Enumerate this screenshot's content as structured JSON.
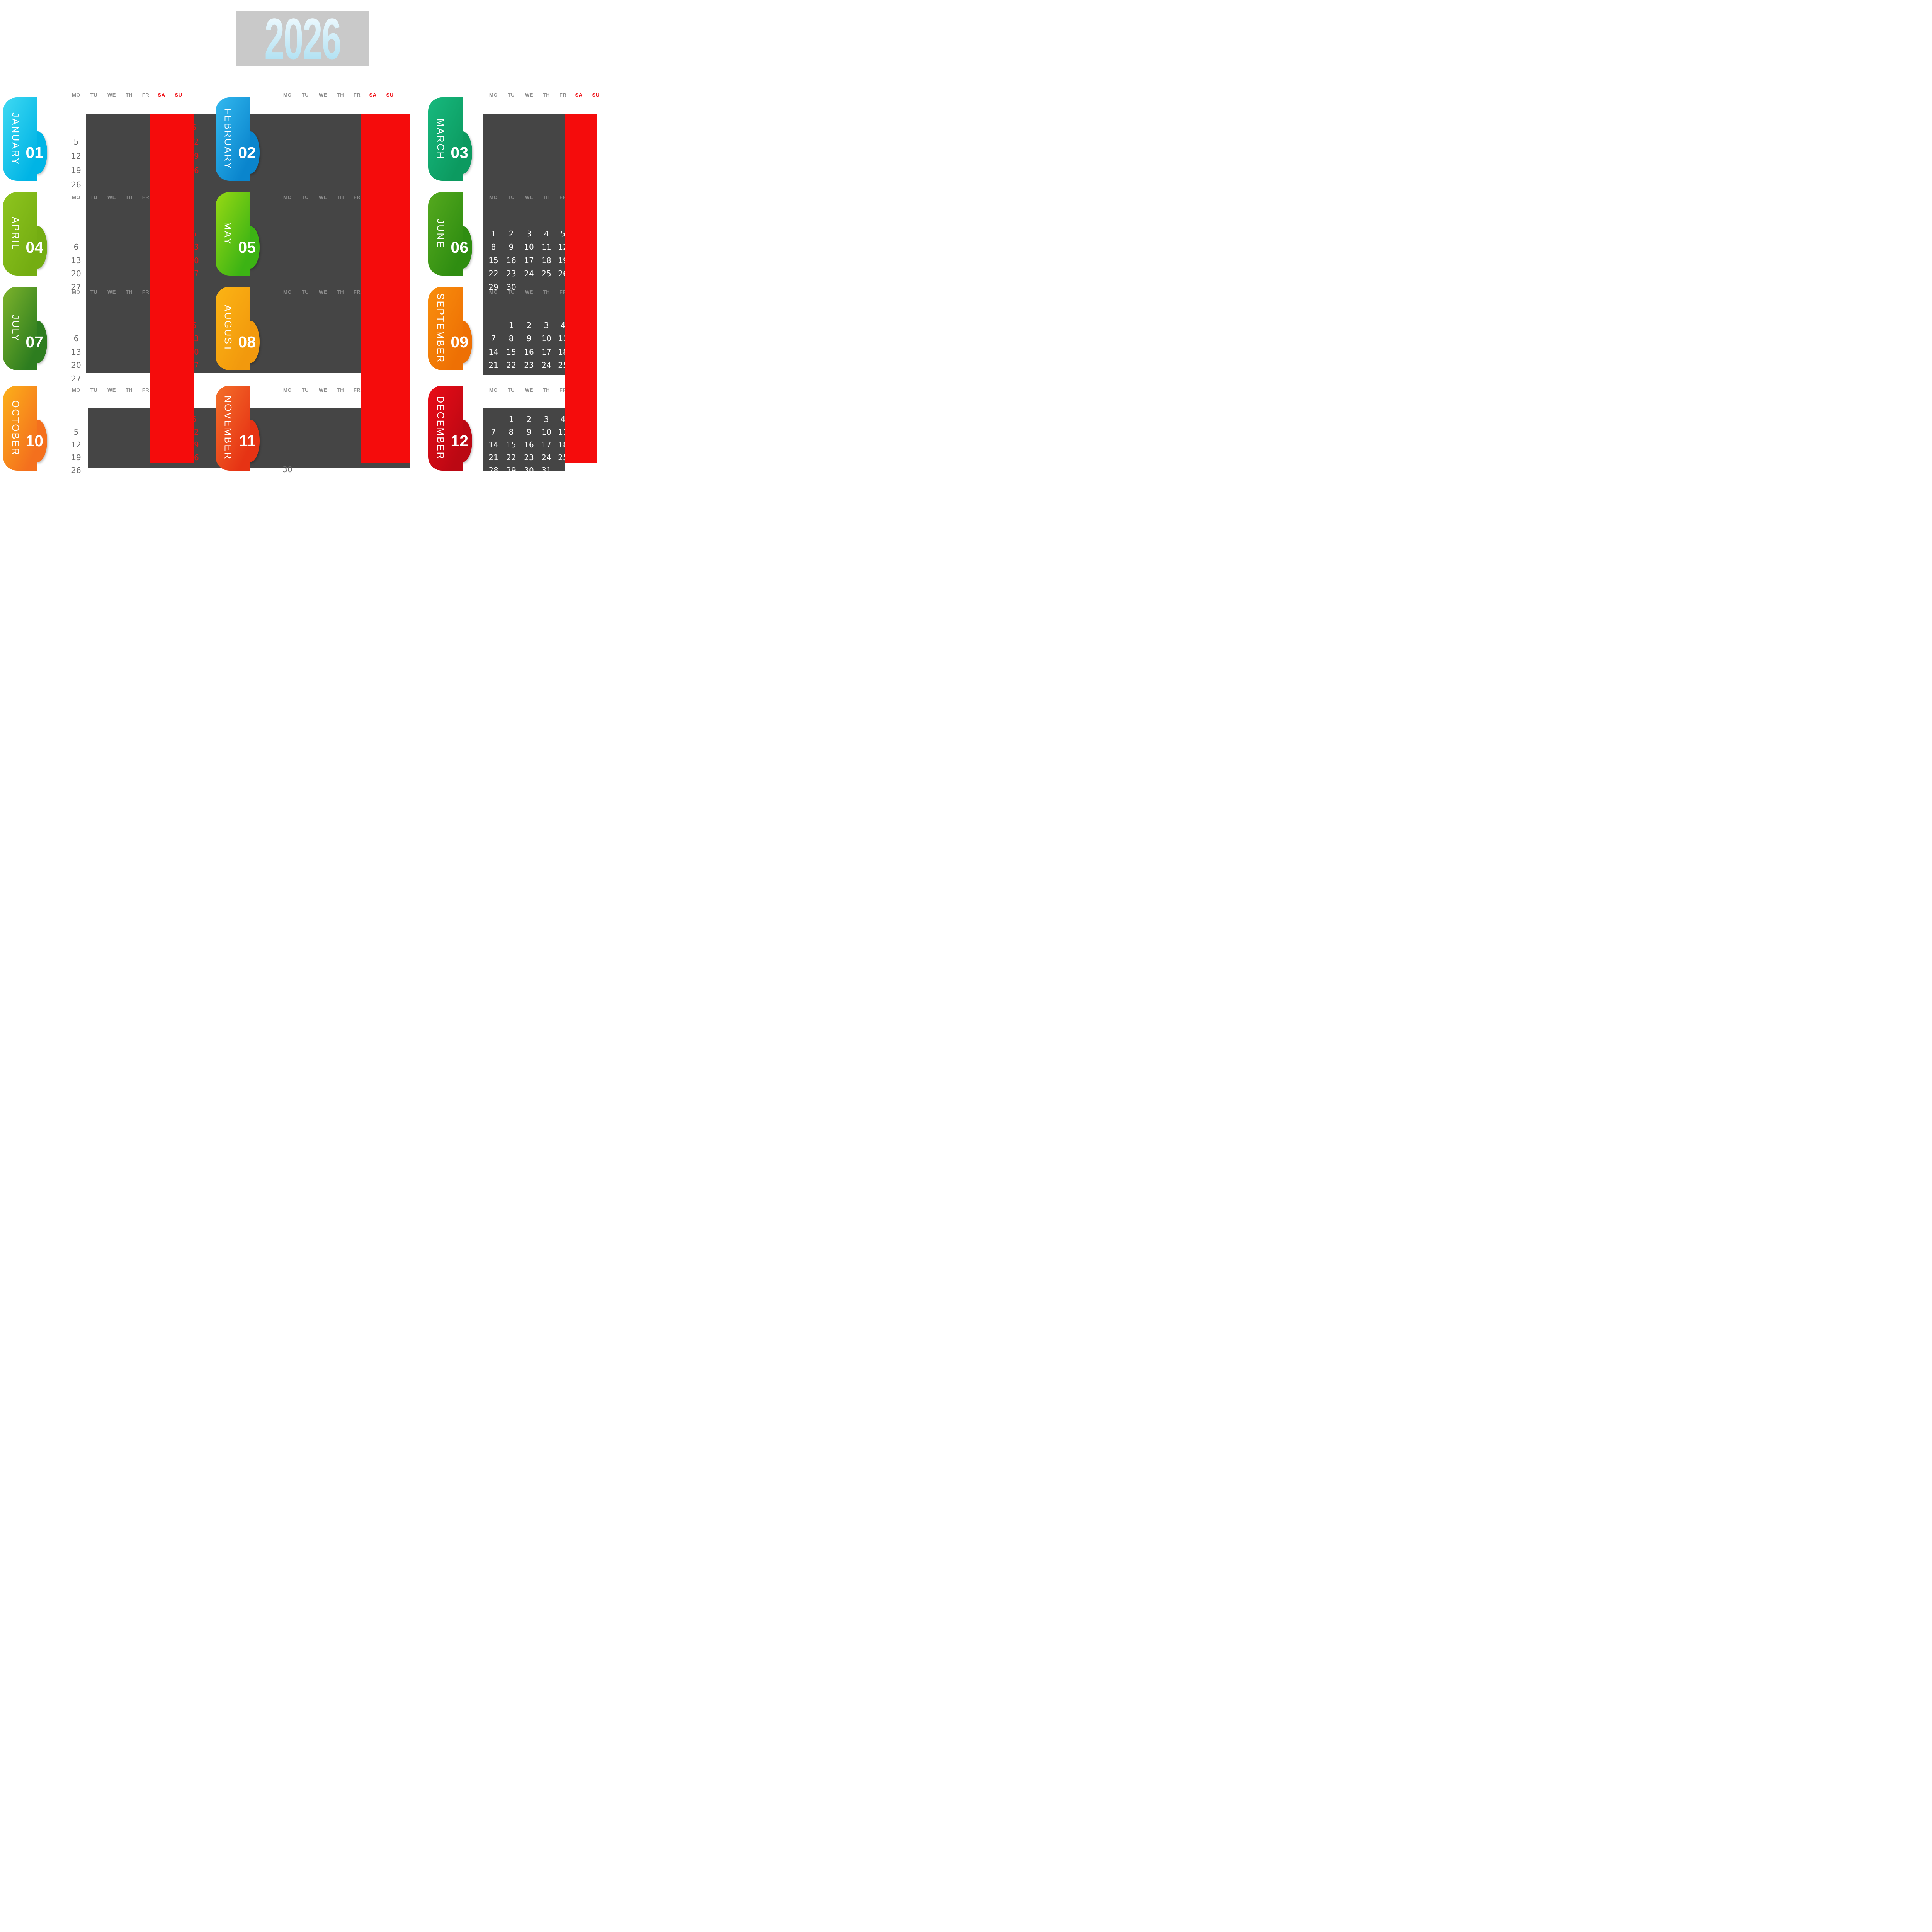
{
  "title": {
    "year": "2026"
  },
  "weekday_labels": [
    "MO",
    "TU",
    "WE",
    "TH",
    "FR",
    "SA",
    "SU"
  ],
  "colors": {
    "dark_panel": "#454545",
    "weekend_bar_red": "#f50c0c",
    "weekend_header_red": "#ef1016",
    "red_date": "#ee1111",
    "header_gray": "#8c8c8c",
    "gray_date": "#696969",
    "white_date": "#ffffff",
    "title_box_gray": "#c9c9c9",
    "title_text_top": "#f5fcff",
    "title_text_bottom": "#a9def1"
  },
  "months": [
    {
      "name": "JANUARY",
      "number": "01",
      "color_start": "#3fd9f2",
      "color_end": "#00b4e5",
      "band": 0,
      "col": 0,
      "gray_mo_dates": [
        5,
        12,
        19,
        26
      ],
      "red_dates": [
        5,
        12,
        19,
        26
      ]
    },
    {
      "name": "FEBRUARY",
      "number": "02",
      "color_start": "#33b9ef",
      "color_end": "#0a85cd",
      "band": 0,
      "col": 1
    },
    {
      "name": "MARCH",
      "number": "03",
      "color_start": "#17b97e",
      "color_end": "#0c9a60",
      "band": 0,
      "col": 2
    },
    {
      "name": "APRIL",
      "number": "04",
      "color_start": "#8ec41e",
      "color_end": "#74ad12",
      "band": 1,
      "col": 0,
      "gray_mo_dates": [
        6,
        13,
        20,
        27
      ],
      "red_dates": [
        6,
        13,
        20,
        27
      ]
    },
    {
      "name": "MAY",
      "number": "05",
      "color_start": "#97d914",
      "color_end": "#3cb314",
      "band": 1,
      "col": 1
    },
    {
      "name": "JUNE",
      "number": "06",
      "color_start": "#55a91e",
      "color_end": "#2f8d11",
      "band": 1,
      "col": 2,
      "white_grid": [
        [
          1,
          2,
          3,
          4,
          5
        ],
        [
          8,
          9,
          10,
          11,
          12
        ],
        [
          15,
          16,
          17,
          18,
          19
        ],
        [
          22,
          23,
          24,
          25,
          26
        ],
        [
          29,
          30
        ]
      ]
    },
    {
      "name": "JULY",
      "number": "07",
      "color_start": "#7db32b",
      "color_end": "#2d7d1f",
      "band": 2,
      "col": 0,
      "gray_mo_dates": [
        6,
        13,
        20,
        27
      ],
      "red_dates": [
        6,
        13,
        20,
        27
      ]
    },
    {
      "name": "AUGUST",
      "number": "08",
      "color_start": "#fcb414",
      "color_end": "#f2990d",
      "band": 2,
      "col": 1
    },
    {
      "name": "SEPTEMBER",
      "number": "09",
      "color_start": "#f98e0c",
      "color_end": "#ee7004",
      "band": 2,
      "col": 2,
      "white_grid": [
        [
          null,
          1,
          2,
          3,
          4
        ],
        [
          7,
          8,
          9,
          10,
          11
        ],
        [
          14,
          15,
          16,
          17,
          18
        ],
        [
          21,
          22,
          23,
          24,
          25
        ],
        [
          28,
          29,
          30
        ]
      ]
    },
    {
      "name": "OCTOBER",
      "number": "10",
      "color_start": "#fcb01a",
      "color_end": "#f4701d",
      "band": 3,
      "col": 0,
      "gray_mo_dates": [
        5,
        12,
        19,
        26
      ],
      "red_dates": [
        5,
        12,
        19,
        26
      ]
    },
    {
      "name": "NOVEMBER",
      "number": "11",
      "color_start": "#f4702a",
      "color_end": "#e63314",
      "band": 3,
      "col": 1,
      "extra_date": 30
    },
    {
      "name": "DECEMBER",
      "number": "12",
      "color_start": "#ea0c17",
      "color_end": "#bb0813",
      "band": 3,
      "col": 2,
      "white_grid": [
        [
          null,
          1,
          2,
          3,
          4
        ],
        [
          7,
          8,
          9,
          10,
          11
        ],
        [
          14,
          15,
          16,
          17,
          18
        ],
        [
          21,
          22,
          23,
          24,
          25
        ],
        [
          28,
          29,
          30,
          31
        ]
      ]
    }
  ]
}
